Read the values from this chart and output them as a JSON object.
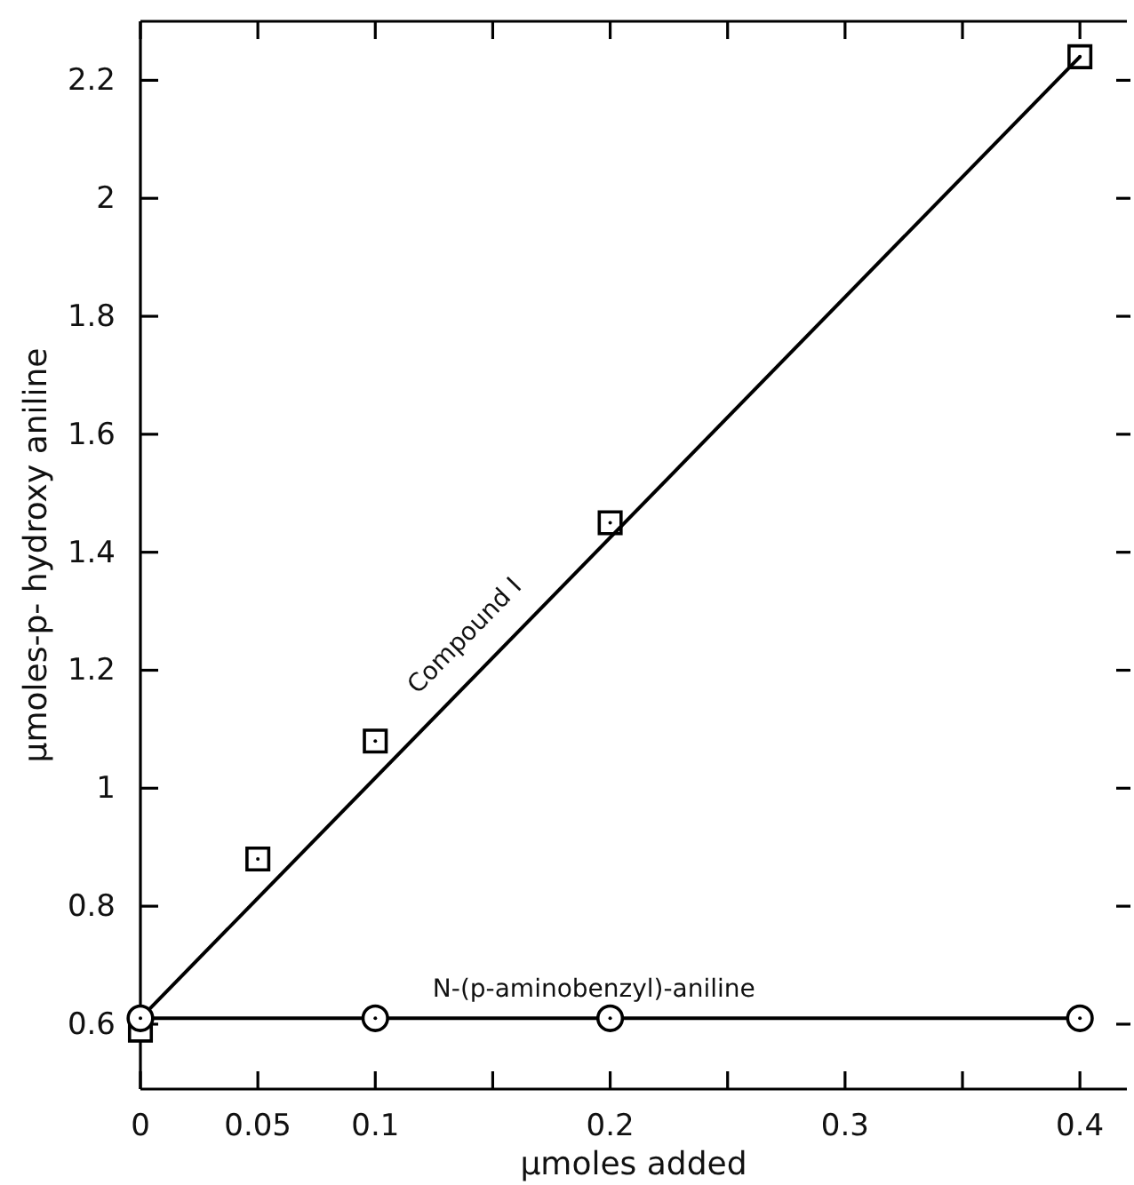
{
  "chart_data": {
    "type": "scatter",
    "xlabel": "μmoles added",
    "ylabel": "μmoles-p- hydroxy aniline",
    "xlim": [
      0,
      0.42
    ],
    "ylim": [
      0.49,
      2.3
    ],
    "xticks": [
      0,
      0.05,
      0.1,
      {
        "value": 0.15,
        "label": null
      },
      0.2,
      {
        "value": 0.25,
        "label": null
      },
      0.3,
      {
        "value": 0.35,
        "label": null
      },
      0.4
    ],
    "yticks": [
      0.6,
      0.8,
      1.0,
      1.2,
      1.4,
      1.6,
      1.8,
      2.0,
      2.2
    ],
    "grid": false,
    "series": [
      {
        "marker": "square",
        "color": "#000000",
        "x": [
          0,
          0.05,
          0.1,
          0.2,
          0.4
        ],
        "values": [
          0.59,
          0.88,
          1.08,
          1.45,
          2.24
        ]
      },
      {
        "type": "line",
        "name": "Compound I",
        "line_style": "solid",
        "color": "#000000",
        "x": [
          0,
          0.4
        ],
        "values": [
          0.61,
          2.24
        ]
      },
      {
        "type": "line",
        "name": "N-(p-aminobenzyl)-aniline",
        "marker": "circle",
        "line_style": "solid",
        "color": "#000000",
        "x": [
          0,
          0.1,
          0.2,
          0.4
        ],
        "values": [
          0.61,
          0.61,
          0.61,
          0.61
        ]
      }
    ]
  }
}
